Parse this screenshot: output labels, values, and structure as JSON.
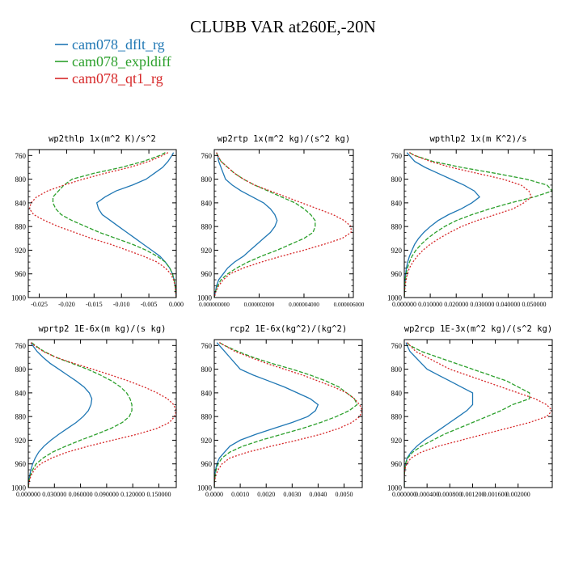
{
  "figure": {
    "title": "CLUBB VAR at260E,-20N",
    "legend": [
      {
        "name": "cam078_dflt_rg",
        "color": "#1f77b4"
      },
      {
        "name": "cam078_expldiff",
        "color": "#2ca02c"
      },
      {
        "name": "cam078_qt1_rg",
        "color": "#d62728"
      }
    ]
  },
  "chart_data": [
    {
      "type": "line",
      "title": "wp2thlp",
      "units": "1x(m^2 K)/s^2",
      "xlim": [
        -0.027,
        0.0
      ],
      "ylim": [
        1000,
        750
      ],
      "xticks": [
        -0.025,
        -0.02,
        -0.015,
        -0.01,
        -0.005,
        0.0
      ],
      "xticklabels": [
        "-0.025",
        "-0.020",
        "-0.015",
        "-0.010",
        "-0.005",
        "0.000"
      ],
      "yticks": [
        760,
        800,
        840,
        880,
        920,
        960,
        1000
      ],
      "yticklabels": [
        "760",
        "800",
        "840",
        "880",
        "920",
        "960",
        "1000"
      ],
      "y": [
        755,
        760,
        770,
        780,
        790,
        800,
        810,
        820,
        830,
        840,
        850,
        860,
        870,
        880,
        890,
        900,
        910,
        920,
        930,
        940,
        950,
        960,
        970,
        980,
        990,
        1000
      ],
      "series": [
        {
          "name": "cam078_dflt_rg",
          "style": "solid",
          "values": [
            -0.0005,
            -0.0008,
            -0.0015,
            -0.0025,
            -0.004,
            -0.0055,
            -0.008,
            -0.011,
            -0.013,
            -0.0145,
            -0.0142,
            -0.0135,
            -0.012,
            -0.0105,
            -0.009,
            -0.0075,
            -0.006,
            -0.0045,
            -0.003,
            -0.002,
            -0.0012,
            -0.0007,
            -0.0004,
            -0.0002,
            -0.0001,
            0.0
          ]
        },
        {
          "name": "cam078_expldiff",
          "style": "dashed",
          "values": [
            -0.002,
            -0.003,
            -0.006,
            -0.01,
            -0.015,
            -0.019,
            -0.0205,
            -0.0215,
            -0.0225,
            -0.0225,
            -0.022,
            -0.021,
            -0.019,
            -0.0165,
            -0.014,
            -0.011,
            -0.008,
            -0.0055,
            -0.0035,
            -0.002,
            -0.0012,
            -0.0007,
            -0.0004,
            -0.0002,
            -0.0001,
            0.0
          ]
        },
        {
          "name": "cam078_qt1_rg",
          "style": "dotted",
          "values": [
            -0.0015,
            -0.0025,
            -0.005,
            -0.0085,
            -0.013,
            -0.017,
            -0.0205,
            -0.0235,
            -0.0255,
            -0.0265,
            -0.0268,
            -0.026,
            -0.024,
            -0.0215,
            -0.0185,
            -0.0155,
            -0.012,
            -0.009,
            -0.006,
            -0.0035,
            -0.002,
            -0.001,
            -0.0005,
            -0.0002,
            -0.0001,
            0.0
          ]
        }
      ]
    },
    {
      "type": "line",
      "title": "wp2rtp",
      "units": "1x(m^2 kg)/(s^2 kg)",
      "xlim": [
        0.0,
        6.2e-06
      ],
      "ylim": [
        1000,
        750
      ],
      "xticks": [
        0.0,
        2e-06,
        4e-06,
        6e-06
      ],
      "xticklabels": [
        "0.000000000",
        "0.000002000",
        "0.000004000",
        "0.000006000"
      ],
      "yticks": [
        760,
        800,
        840,
        880,
        920,
        960,
        1000
      ],
      "yticklabels": [
        "760",
        "800",
        "840",
        "880",
        "920",
        "960",
        "1000"
      ],
      "y": [
        755,
        760,
        770,
        780,
        790,
        800,
        810,
        820,
        830,
        840,
        850,
        860,
        870,
        880,
        890,
        900,
        910,
        920,
        930,
        940,
        950,
        960,
        970,
        980,
        990,
        1000
      ],
      "series": [
        {
          "name": "cam078_dflt_rg",
          "style": "solid",
          "values": [
            1e-07,
            1.5e-07,
            2e-07,
            3e-07,
            4e-07,
            5e-07,
            8e-07,
            1.2e-06,
            1.7e-06,
            2.2e-06,
            2.5e-06,
            2.7e-06,
            2.8e-06,
            2.7e-06,
            2.5e-06,
            2.2e-06,
            1.9e-06,
            1.6e-06,
            1.3e-06,
            9e-07,
            6e-07,
            4e-07,
            2e-07,
            1e-07,
            5e-08,
            0.0
          ]
        },
        {
          "name": "cam078_expldiff",
          "style": "dashed",
          "values": [
            1e-07,
            1.5e-07,
            3e-07,
            6e-07,
            9e-07,
            1.3e-06,
            1.8e-06,
            2.4e-06,
            3e-06,
            3.6e-06,
            4e-06,
            4.3e-06,
            4.5e-06,
            4.5e-06,
            4.4e-06,
            4e-06,
            3.4e-06,
            2.8e-06,
            2.1e-06,
            1.5e-06,
            1e-06,
            6e-07,
            3e-07,
            1.5e-07,
            5e-08,
            0.0
          ]
        },
        {
          "name": "cam078_qt1_rg",
          "style": "dotted",
          "values": [
            1e-07,
            1.5e-07,
            3e-07,
            6e-07,
            9e-07,
            1.3e-06,
            1.8e-06,
            2.5e-06,
            3.2e-06,
            3.9e-06,
            4.6e-06,
            5.3e-06,
            5.8e-06,
            6.1e-06,
            6.1e-06,
            5.7e-06,
            4.9e-06,
            4e-06,
            3e-06,
            2.1e-06,
            1.3e-06,
            7e-07,
            4e-07,
            2e-07,
            7e-08,
            0.0
          ]
        }
      ]
    },
    {
      "type": "line",
      "title": "wpthlp2",
      "units": "1x(m K^2)/s",
      "xlim": [
        0.0,
        0.057
      ],
      "ylim": [
        1000,
        750
      ],
      "xticks": [
        0.0,
        0.01,
        0.02,
        0.03,
        0.04,
        0.05
      ],
      "xticklabels": [
        "0.000000",
        "0.010000",
        "0.020000",
        "0.030000",
        "0.040000",
        "0.050000"
      ],
      "yticks": [
        760,
        800,
        840,
        880,
        920,
        960,
        1000
      ],
      "yticklabels": [
        "760",
        "800",
        "840",
        "880",
        "920",
        "960",
        "1000"
      ],
      "y": [
        755,
        760,
        770,
        780,
        790,
        800,
        810,
        820,
        830,
        840,
        850,
        860,
        870,
        880,
        890,
        900,
        910,
        920,
        930,
        940,
        950,
        960,
        970,
        980,
        990,
        1000
      ],
      "series": [
        {
          "name": "cam078_dflt_rg",
          "style": "solid",
          "values": [
            0.001,
            0.002,
            0.004,
            0.008,
            0.013,
            0.018,
            0.023,
            0.027,
            0.029,
            0.026,
            0.022,
            0.017,
            0.013,
            0.01,
            0.0075,
            0.0055,
            0.004,
            0.003,
            0.002,
            0.0013,
            0.0008,
            0.0005,
            0.0003,
            0.0002,
            0.0001,
            0.0
          ]
        },
        {
          "name": "cam078_expldiff",
          "style": "dashed",
          "values": [
            0.002,
            0.004,
            0.011,
            0.022,
            0.035,
            0.047,
            0.055,
            0.057,
            0.05,
            0.041,
            0.033,
            0.026,
            0.02,
            0.0155,
            0.012,
            0.009,
            0.0065,
            0.0045,
            0.003,
            0.002,
            0.0012,
            0.0007,
            0.0004,
            0.0002,
            0.0001,
            0.0
          ]
        },
        {
          "name": "cam078_qt1_rg",
          "style": "dotted",
          "values": [
            0.002,
            0.004,
            0.01,
            0.018,
            0.028,
            0.038,
            0.045,
            0.048,
            0.049,
            0.046,
            0.042,
            0.035,
            0.028,
            0.022,
            0.0175,
            0.0135,
            0.01,
            0.0072,
            0.005,
            0.0033,
            0.002,
            0.0012,
            0.0007,
            0.0003,
            0.0001,
            0.0
          ]
        }
      ]
    },
    {
      "type": "line",
      "title": "wprtp2",
      "units": "1E-6x(m kg)/(s kg)",
      "xlim": [
        0.0,
        0.17
      ],
      "ylim": [
        1000,
        750
      ],
      "xticks": [
        0.0,
        0.03,
        0.06,
        0.09,
        0.12,
        0.15
      ],
      "xticklabels": [
        "0.000000",
        "0.030000",
        "0.060000",
        "0.090000",
        "0.120000",
        "0.150000"
      ],
      "yticks": [
        760,
        800,
        840,
        880,
        920,
        960,
        1000
      ],
      "yticklabels": [
        "760",
        "800",
        "840",
        "880",
        "920",
        "960",
        "1000"
      ],
      "y": [
        755,
        760,
        770,
        780,
        790,
        800,
        810,
        820,
        830,
        840,
        850,
        860,
        870,
        880,
        890,
        900,
        910,
        920,
        930,
        940,
        950,
        960,
        970,
        980,
        990,
        1000
      ],
      "series": [
        {
          "name": "cam078_dflt_rg",
          "style": "solid",
          "values": [
            0.003,
            0.005,
            0.01,
            0.017,
            0.025,
            0.035,
            0.045,
            0.055,
            0.064,
            0.07,
            0.073,
            0.072,
            0.069,
            0.063,
            0.055,
            0.045,
            0.035,
            0.026,
            0.018,
            0.012,
            0.008,
            0.005,
            0.003,
            0.0015,
            0.0005,
            0.0
          ]
        },
        {
          "name": "cam078_expldiff",
          "style": "dashed",
          "values": [
            0.004,
            0.008,
            0.018,
            0.032,
            0.05,
            0.068,
            0.083,
            0.096,
            0.106,
            0.113,
            0.117,
            0.119,
            0.119,
            0.116,
            0.108,
            0.095,
            0.078,
            0.06,
            0.043,
            0.028,
            0.017,
            0.009,
            0.005,
            0.002,
            0.0007,
            0.0
          ]
        },
        {
          "name": "cam078_qt1_rg",
          "style": "dotted",
          "values": [
            0.003,
            0.007,
            0.017,
            0.032,
            0.052,
            0.074,
            0.095,
            0.115,
            0.133,
            0.148,
            0.16,
            0.167,
            0.17,
            0.168,
            0.162,
            0.148,
            0.125,
            0.097,
            0.069,
            0.045,
            0.027,
            0.014,
            0.007,
            0.003,
            0.001,
            0.0
          ]
        }
      ]
    },
    {
      "type": "line",
      "title": "rcp2",
      "units": "1E-6x(kg^2)/(kg^2)",
      "xlim": [
        0.0,
        0.0057
      ],
      "ylim": [
        1000,
        750
      ],
      "xticks": [
        0.0,
        0.001,
        0.002,
        0.003,
        0.004,
        0.005
      ],
      "xticklabels": [
        "0.0000",
        "0.0010",
        "0.0020",
        "0.0030",
        "0.0040",
        "0.0050"
      ],
      "yticks": [
        760,
        800,
        840,
        880,
        920,
        960,
        1000
      ],
      "yticklabels": [
        "760",
        "800",
        "840",
        "880",
        "920",
        "960",
        "1000"
      ],
      "y": [
        755,
        760,
        770,
        780,
        790,
        800,
        810,
        820,
        830,
        840,
        850,
        860,
        870,
        880,
        890,
        900,
        910,
        920,
        930,
        940,
        950,
        960,
        970,
        980,
        990,
        1000
      ],
      "series": [
        {
          "name": "cam078_dflt_rg",
          "style": "solid",
          "values": [
            0.0001,
            0.0002,
            0.0004,
            0.0006,
            0.0008,
            0.001,
            0.0015,
            0.0021,
            0.0027,
            0.0032,
            0.0037,
            0.004,
            0.0039,
            0.0036,
            0.003,
            0.0023,
            0.0016,
            0.001,
            0.0006,
            0.0004,
            0.0002,
            0.0001,
            5e-05,
            2e-05,
            1e-05,
            0.0
          ]
        },
        {
          "name": "cam078_expldiff",
          "style": "dashed",
          "values": [
            0.0002,
            0.0004,
            0.0009,
            0.0015,
            0.0022,
            0.003,
            0.0037,
            0.0043,
            0.0048,
            0.0051,
            0.0054,
            0.0055,
            0.0052,
            0.0047,
            0.0041,
            0.0034,
            0.0026,
            0.0018,
            0.0011,
            0.0006,
            0.0003,
            0.00015,
            7e-05,
            3e-05,
            1e-05,
            0.0
          ]
        },
        {
          "name": "cam078_qt1_rg",
          "style": "dotted",
          "values": [
            0.0002,
            0.0004,
            0.0008,
            0.0014,
            0.002,
            0.0027,
            0.0034,
            0.004,
            0.0046,
            0.0051,
            0.0054,
            0.0056,
            0.0057,
            0.0056,
            0.0053,
            0.0048,
            0.0041,
            0.0032,
            0.0022,
            0.0013,
            0.0006,
            0.0003,
            0.00015,
            5e-05,
            1e-05,
            0.0
          ]
        }
      ]
    },
    {
      "type": "line",
      "title": "wp2rcp",
      "units": "1E-3x(m^2 kg)/(s^2 kg)",
      "xlim": [
        0.0,
        0.0026
      ],
      "ylim": [
        1000,
        750
      ],
      "xticks": [
        0.0,
        0.0004,
        0.0008,
        0.0012,
        0.0016,
        0.002
      ],
      "xticklabels": [
        "0.000000",
        "0.000400",
        "0.000800",
        "0.001200",
        "0.001600",
        "0.002000"
      ],
      "yticks": [
        760,
        800,
        840,
        880,
        920,
        960,
        1000
      ],
      "yticklabels": [
        "760",
        "800",
        "840",
        "880",
        "920",
        "960",
        "1000"
      ],
      "y": [
        755,
        760,
        770,
        780,
        790,
        800,
        810,
        820,
        830,
        840,
        850,
        860,
        870,
        880,
        890,
        900,
        910,
        920,
        930,
        940,
        950,
        960,
        970,
        980,
        990,
        1000
      ],
      "series": [
        {
          "name": "cam078_dflt_rg",
          "style": "solid",
          "values": [
            3e-05,
            5e-05,
            0.0001,
            0.0002,
            0.0003,
            0.0004,
            0.0006,
            0.0008,
            0.001,
            0.0012,
            0.0012,
            0.0012,
            0.0011,
            0.00095,
            0.0008,
            0.00065,
            0.0005,
            0.00035,
            0.00022,
            0.00012,
            5e-05,
            2e-05,
            1e-05,
            0.0,
            0.0,
            0.0
          ]
        },
        {
          "name": "cam078_expldiff",
          "style": "dashed",
          "values": [
            5e-05,
            0.0001,
            0.0003,
            0.0006,
            0.0009,
            0.0012,
            0.0015,
            0.0018,
            0.002,
            0.0022,
            0.0022,
            0.0019,
            0.0017,
            0.00145,
            0.0012,
            0.00095,
            0.0007,
            0.0005,
            0.0003,
            0.00015,
            6e-05,
            2e-05,
            1e-05,
            0.0,
            0.0,
            0.0
          ]
        },
        {
          "name": "cam078_qt1_rg",
          "style": "dotted",
          "values": [
            5e-05,
            0.0001,
            0.0002,
            0.0004,
            0.0006,
            0.0008,
            0.0011,
            0.0014,
            0.0017,
            0.002,
            0.0023,
            0.0025,
            0.0026,
            0.0025,
            0.0022,
            0.0018,
            0.0014,
            0.001,
            0.0006,
            0.0003,
            0.00012,
            4e-05,
            1e-05,
            0.0,
            0.0,
            0.0
          ]
        }
      ]
    }
  ]
}
